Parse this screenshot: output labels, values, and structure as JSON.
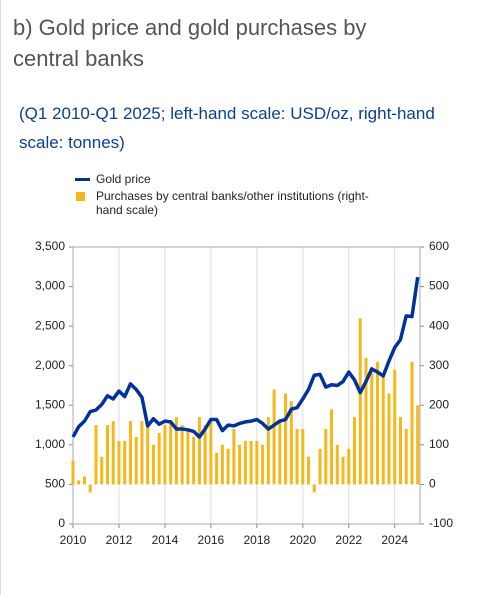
{
  "title": "b) Gold price and gold purchases by central banks",
  "subtitle": "(Q1 2010-Q1 2025; left-hand scale: USD/oz, right-hand scale: tonnes)",
  "chart_data": {
    "type": "combo",
    "x": [
      2010,
      2010.25,
      2010.5,
      2010.75,
      2011,
      2011.25,
      2011.5,
      2011.75,
      2012,
      2012.25,
      2012.5,
      2012.75,
      2013,
      2013.25,
      2013.5,
      2013.75,
      2014,
      2014.25,
      2014.5,
      2014.75,
      2015,
      2015.25,
      2015.5,
      2015.75,
      2016,
      2016.25,
      2016.5,
      2016.75,
      2017,
      2017.25,
      2017.5,
      2017.75,
      2018,
      2018.25,
      2018.5,
      2018.75,
      2019,
      2019.25,
      2019.5,
      2019.75,
      2020,
      2020.25,
      2020.5,
      2020.75,
      2021,
      2021.25,
      2021.5,
      2021.75,
      2022,
      2022.25,
      2022.5,
      2022.75,
      2023,
      2023.25,
      2023.5,
      2023.75,
      2024,
      2024.25,
      2024.5,
      2024.75,
      2025
    ],
    "xlim": [
      2010,
      2025.1
    ],
    "xticks": [
      2010,
      2012,
      2014,
      2016,
      2018,
      2020,
      2022,
      2024
    ],
    "ylim": [
      0,
      3500
    ],
    "yticks": [
      0,
      500,
      {
        "value": 1000,
        "label": "1,000"
      },
      {
        "value": 1500,
        "label": "1,500"
      },
      {
        "value": 2000,
        "label": "2,000"
      },
      {
        "value": 2500,
        "label": "2,500"
      },
      {
        "value": 3000,
        "label": "3,000"
      },
      {
        "value": 3500,
        "label": "3,500"
      }
    ],
    "y2lim": [
      -100,
      600
    ],
    "y2ticks": [
      -100,
      0,
      100,
      200,
      300,
      400,
      500,
      600
    ],
    "grid": "x",
    "series": [
      {
        "name": "Gold price",
        "type": "line",
        "color": "#003299",
        "values": [
          1100,
          1230,
          1300,
          1420,
          1440,
          1510,
          1620,
          1580,
          1680,
          1610,
          1770,
          1700,
          1600,
          1240,
          1330,
          1260,
          1300,
          1290,
          1200,
          1200,
          1190,
          1170,
          1100,
          1200,
          1320,
          1320,
          1180,
          1250,
          1240,
          1270,
          1290,
          1300,
          1320,
          1270,
          1200,
          1250,
          1300,
          1320,
          1450,
          1470,
          1580,
          1700,
          1880,
          1890,
          1730,
          1760,
          1750,
          1800,
          1920,
          1820,
          1660,
          1800,
          1960,
          1920,
          1870,
          2060,
          2230,
          2330,
          2630,
          2620,
          3120
        ]
      },
      {
        "name": "Purchases by central banks/other institutions (right-hand scale)",
        "type": "bar",
        "axis": "y2",
        "color": "#f5b719",
        "values": [
          60,
          10,
          20,
          -20,
          150,
          70,
          150,
          160,
          110,
          110,
          160,
          120,
          160,
          150,
          100,
          130,
          150,
          160,
          170,
          150,
          140,
          120,
          170,
          150,
          160,
          80,
          100,
          90,
          140,
          100,
          110,
          110,
          110,
          100,
          170,
          240,
          160,
          230,
          210,
          140,
          140,
          70,
          -20,
          90,
          140,
          190,
          100,
          70,
          90,
          170,
          420,
          320,
          290,
          310,
          270,
          230,
          290,
          170,
          140,
          310,
          200
        ]
      }
    ]
  }
}
